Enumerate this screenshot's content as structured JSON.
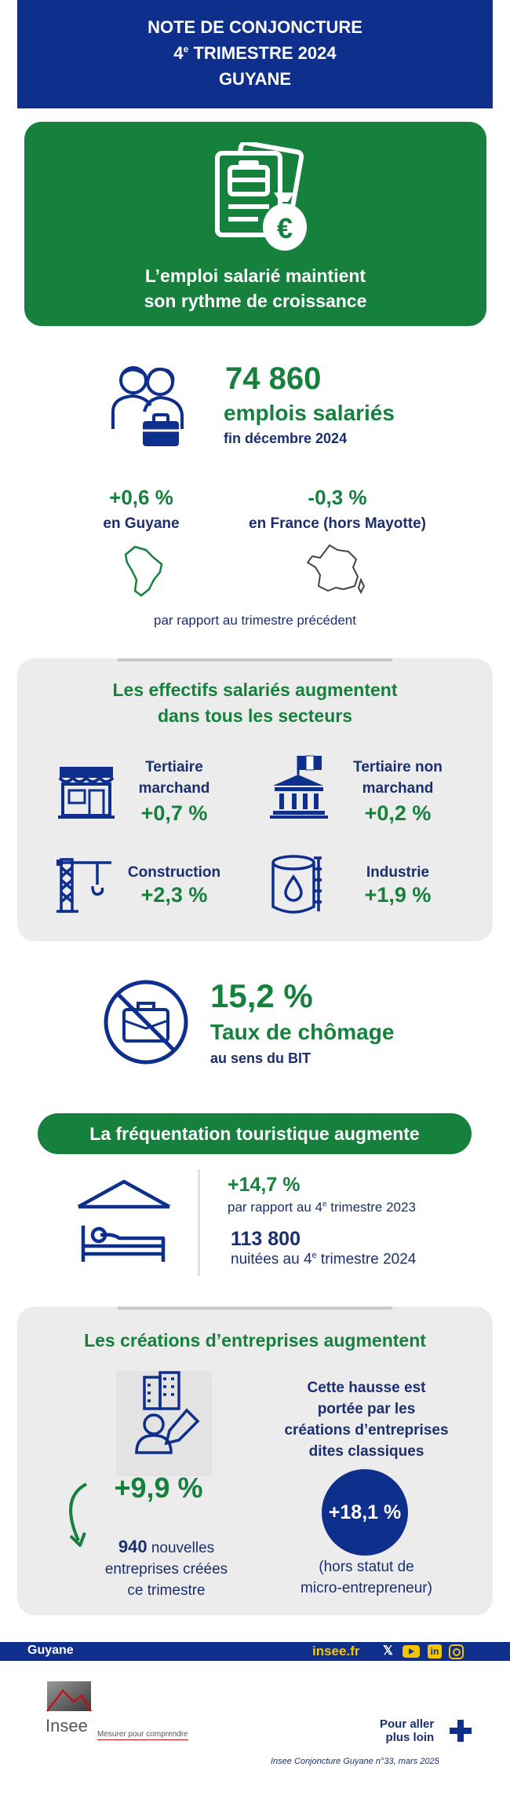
{
  "header": {
    "line1": "NOTE DE CONJONCTURE",
    "line2_num": "4",
    "line2_sup": "e",
    "line2_rest": " TRIMESTRE 2024",
    "line3": "GUYANE"
  },
  "hero": {
    "title_line1": "L’emploi salarié maintient",
    "title_line2": "son rythme de croissance",
    "icon": "documents-money-icon"
  },
  "employment": {
    "value": "74 860",
    "label": "emplois salariés",
    "date": "fin décembre 2024",
    "guyane_change": "+0,6 %",
    "guyane_label": "en Guyane",
    "france_change": "-0,3 %",
    "france_label": "en France (hors Mayotte)",
    "comparison_note": "par rapport au trimestre précédent"
  },
  "sectors": {
    "title_line1": "Les effectifs salariés augmentent",
    "title_line2": "dans tous les secteurs",
    "items": [
      {
        "name_line1": "Tertiaire",
        "name_line2": "marchand",
        "change": "+0,7 %",
        "icon": "shop-icon"
      },
      {
        "name_line1": "Tertiaire non",
        "name_line2": "marchand",
        "change": "+0,2 %",
        "icon": "public-building-icon"
      },
      {
        "name_line1": "Construction",
        "name_line2": "",
        "change": "+2,3 %",
        "icon": "crane-icon"
      },
      {
        "name_line1": "Industrie",
        "name_line2": "",
        "change": "+1,9 %",
        "icon": "oil-tank-icon"
      }
    ]
  },
  "unemployment": {
    "value": "15,2 %",
    "label": "Taux de chômage",
    "sublabel": "au sens du BIT",
    "icon": "no-briefcase-icon"
  },
  "tourism": {
    "banner": "La fréquentation touristique augmente",
    "change": "+14,7 %",
    "change_label_pre": "par rapport au 4",
    "change_label_sup": "e",
    "change_label_post": " trimestre 2023",
    "nights_value": "113 800",
    "nights_label_pre": "nuitées au 4",
    "nights_label_sup": "e",
    "nights_label_post": " trimestre 2024",
    "icon": "hotel-bed-icon"
  },
  "companies": {
    "title": "Les créations d’entreprises augmentent",
    "change": "+9,9 %",
    "count": "940",
    "count_label1": "nouvelles",
    "count_label2": "entreprises créées",
    "count_label3": "ce trimestre",
    "note_line1": "Cette hausse est",
    "note_line2": "portée par les",
    "note_line3": "créations d’entreprises",
    "note_line4": "dites classiques",
    "classic_change": "+18,1 %",
    "classic_note_line1": "(hors statut de",
    "classic_note_line2": "micro-entrepreneur)"
  },
  "footer": {
    "region": "Guyane",
    "site": "insee.fr",
    "more_line1": "Pour aller",
    "more_line2": "plus loin",
    "logo_text": "Insee",
    "tagline": "Mesurer pour comprendre",
    "citation": "Insee Conjoncture Guyane n°33, mars 2025"
  },
  "colors": {
    "navy": "#0f2f8c",
    "green": "#16803d",
    "gray_box": "#ececec",
    "social_yellow": "#f5c400"
  }
}
